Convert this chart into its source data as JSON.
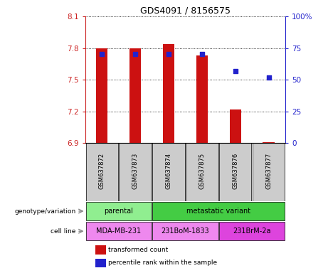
{
  "title": "GDS4091 / 8156575",
  "samples": [
    "GSM637872",
    "GSM637873",
    "GSM637874",
    "GSM637875",
    "GSM637876",
    "GSM637877"
  ],
  "transformed_counts": [
    7.8,
    7.8,
    7.84,
    7.73,
    7.22,
    6.91
  ],
  "percentile_ranks": [
    70,
    70,
    70,
    70,
    57,
    52
  ],
  "ylim_left": [
    6.9,
    8.1
  ],
  "ylim_right": [
    0,
    100
  ],
  "yticks_left": [
    6.9,
    7.2,
    7.5,
    7.8,
    8.1
  ],
  "yticks_right": [
    0,
    25,
    50,
    75,
    100
  ],
  "ytick_labels_left": [
    "6.9",
    "7.2",
    "7.5",
    "7.8",
    "8.1"
  ],
  "ytick_labels_right": [
    "0",
    "25",
    "50",
    "75",
    "100%"
  ],
  "bar_color": "#cc1111",
  "dot_color": "#2222cc",
  "bar_bottom": 6.9,
  "parental_color": "#90ee90",
  "metastatic_color": "#44cc44",
  "cell_mda_color": "#ee88ee",
  "cell_bom_color": "#ee88ee",
  "cell_brm_color": "#dd44dd",
  "sample_box_color": "#cccccc",
  "left_axis_color": "#cc2222",
  "right_axis_color": "#2222cc",
  "legend_bar_color": "#cc1111",
  "legend_dot_color": "#2222cc",
  "legend_label_bar": "transformed count",
  "legend_label_dot": "percentile rank within the sample"
}
